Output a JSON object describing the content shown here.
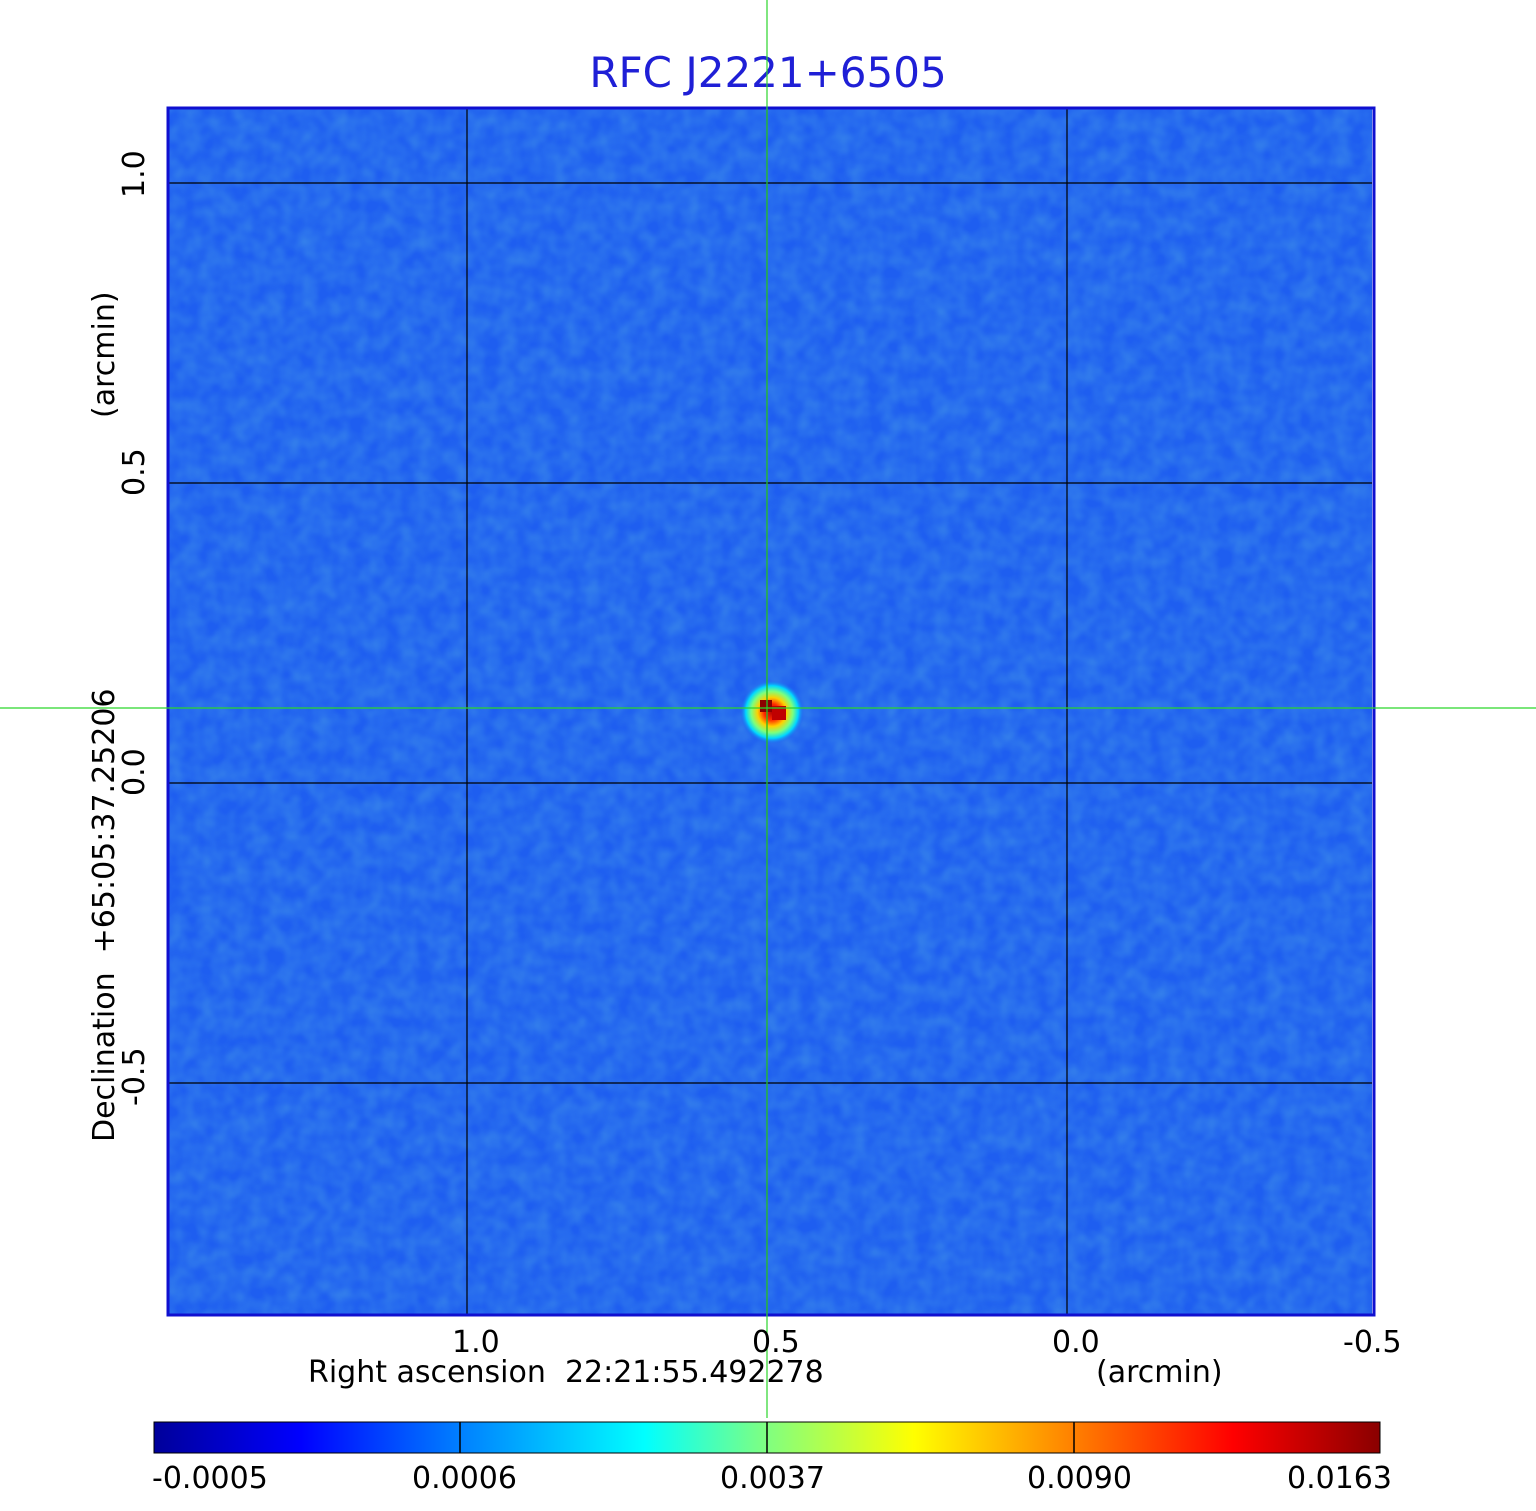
{
  "title": "RFC J2221+6505",
  "x_axis": {
    "label_left": "Right ascension",
    "center_value": "22:21:55.492278",
    "units": "(arcmin)",
    "ticks": [
      "1.0",
      "0.5",
      "0.0",
      "-0.5"
    ]
  },
  "y_axis": {
    "label": "Declination",
    "center_value": "+65:05:37.25206",
    "units": "(arcmin)",
    "ticks": [
      "1.0",
      "0.5",
      "0.0",
      "-0.5"
    ]
  },
  "colorbar": {
    "ticks": [
      "-0.0005",
      "0.0006",
      "0.0037",
      "0.0090",
      "0.0163"
    ],
    "colors": [
      "#00009a",
      "#0000ff",
      "#0080ff",
      "#00ffff",
      "#80ff80",
      "#ffff00",
      "#ff8000",
      "#ff0000",
      "#8a0000"
    ]
  },
  "colors": {
    "background_blue": "#1e5ef0",
    "crosshair": "#2bd62b",
    "grid": "#000000",
    "frame": "#1010d0",
    "title": "#1f1fd6"
  },
  "source": {
    "ra_offset_arcmin": 0.5,
    "dec_offset_arcmin": 0.12
  }
}
